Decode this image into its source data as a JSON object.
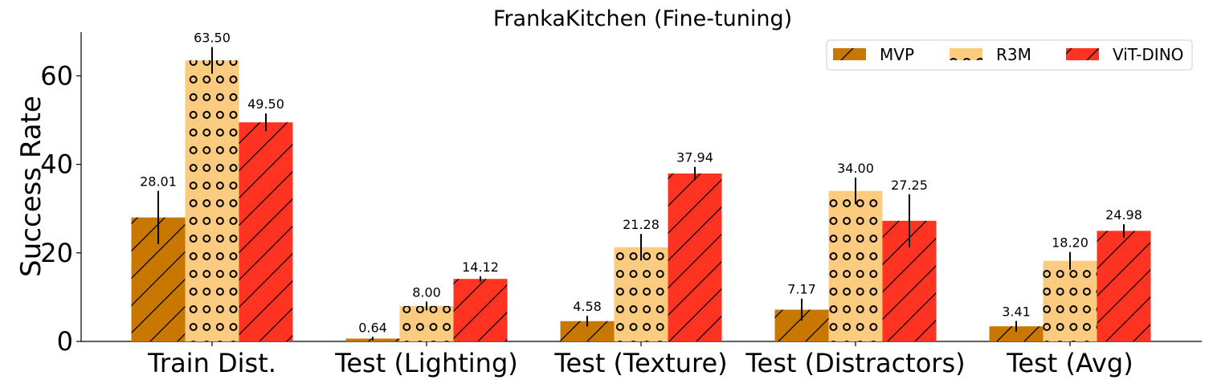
{
  "chart_data": {
    "type": "bar",
    "title": "FrankaKitchen (Fine-tuning)",
    "xlabel": "",
    "ylabel": "Success Rate",
    "ylim": [
      0,
      70
    ],
    "yticks": [
      "0",
      "20",
      "40",
      "60"
    ],
    "grid": false,
    "legend_position": "top-right",
    "categories": [
      "Train Dist.",
      "Test (Lighting)",
      "Test (Texture)",
      "Test (Distractors)",
      "Test (Avg)"
    ],
    "series": [
      {
        "name": "MVP",
        "color": "#c87800",
        "hatch": "diagonal",
        "values": [
          28.01,
          0.64,
          4.58,
          7.17,
          3.41
        ],
        "value_labels": [
          "28.01",
          "0.64",
          "4.58",
          "7.17",
          "3.41"
        ],
        "errors": [
          6.0,
          0.4,
          1.2,
          2.5,
          1.2
        ]
      },
      {
        "name": "R3M",
        "color": "#fbcb80",
        "hatch": "circles",
        "values": [
          63.5,
          8.0,
          21.28,
          34.0,
          18.2
        ],
        "value_labels": [
          "63.50",
          "8.00",
          "21.28",
          "34.00",
          "18.20"
        ],
        "errors": [
          3.0,
          1.0,
          3.0,
          3.0,
          2.0
        ]
      },
      {
        "name": "ViT-DINO",
        "color": "#ff3322",
        "hatch": "diagonal",
        "values": [
          49.5,
          14.12,
          37.94,
          27.25,
          24.98
        ],
        "value_labels": [
          "49.50",
          "14.12",
          "37.94",
          "27.25",
          "24.98"
        ],
        "errors": [
          2.0,
          0.6,
          1.5,
          6.0,
          1.5
        ]
      }
    ]
  }
}
